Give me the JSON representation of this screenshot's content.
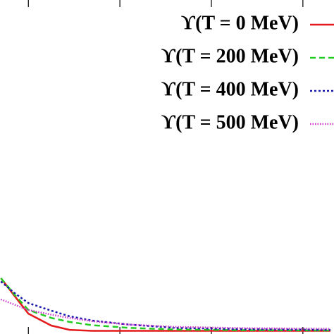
{
  "chart_data": {
    "type": "line",
    "x": [
      -0.3,
      -0.15,
      0,
      0.25,
      0.45,
      0.7,
      1.1,
      1.6,
      2.4,
      3.3
    ],
    "xlim": [
      -0.31,
      3.34
    ],
    "xticks": [
      0,
      1,
      2,
      3
    ],
    "ylim": [
      0,
      1
    ],
    "legend": "top-right",
    "series": [
      {
        "name": "ϒ(T = 0 MeV)",
        "color": "#e41a1c",
        "dash": "none",
        "values": [
          0.16,
          0.106,
          0.053,
          0.017,
          0.004,
          0.001,
          0.001,
          0.001,
          0.001,
          0.001
        ]
      },
      {
        "name": "ϒ(T = 200 MeV)",
        "color": "#22cc22",
        "dash": "8,5",
        "values": [
          0.16,
          0.11,
          0.064,
          0.04,
          0.028,
          0.018,
          0.01,
          0.005,
          0.003,
          0.002
        ]
      },
      {
        "name": "ϒ(T = 400 MeV)",
        "color": "#1a1aaa",
        "dash": "3,3",
        "values": [
          0.15,
          0.115,
          0.085,
          0.062,
          0.045,
          0.032,
          0.02,
          0.01,
          0.006,
          0.004
        ]
      },
      {
        "name": "ϒ(T = 500 MeV)",
        "color": "#cc33cc",
        "dash": "1.5,2",
        "values": [
          0.096,
          0.08,
          0.064,
          0.05,
          0.04,
          0.03,
          0.02,
          0.013,
          0.009,
          0.007
        ]
      }
    ]
  }
}
